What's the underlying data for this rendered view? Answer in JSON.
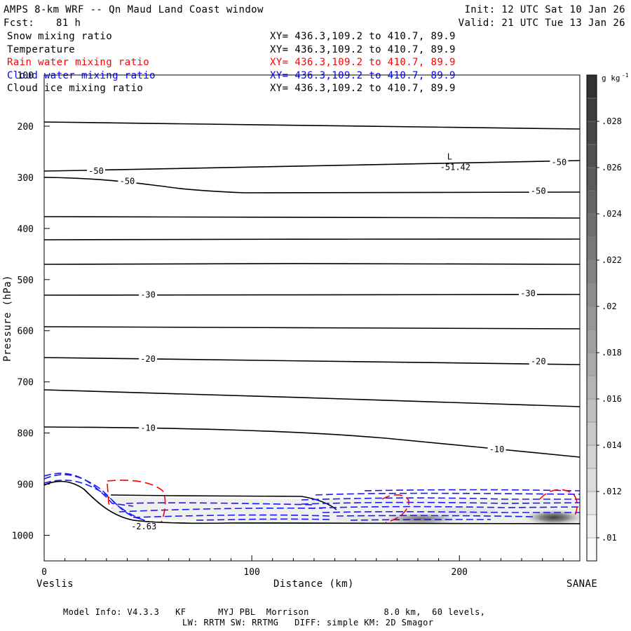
{
  "header": {
    "title": "AMPS 8-km WRF -- Qn Maud Land Coast window",
    "fcst_label": "Fcst:",
    "fcst_hours": "81 h",
    "init": "Init: 12 UTC Sat 10 Jan 26",
    "valid": "Valid: 21 UTC Tue 13 Jan 26"
  },
  "fields": [
    {
      "name": "Snow mixing ratio",
      "xy": "XY= 436.3,109.2 to 410.7, 89.9",
      "color": "#000000"
    },
    {
      "name": "Temperature",
      "xy": "XY= 436.3,109.2 to 410.7, 89.9",
      "color": "#000000"
    },
    {
      "name": "Rain water mixing ratio",
      "xy": "XY= 436.3,109.2 to 410.7, 89.9",
      "color": "#ff0000"
    },
    {
      "name": "Cloud water mixing ratio",
      "xy": "XY= 436.3,109.2 to 410.7, 89.9",
      "color": "#0000ff"
    },
    {
      "name": "Cloud ice mixing ratio",
      "xy": "XY= 436.3,109.2 to 410.7, 89.9",
      "color": "#000000"
    }
  ],
  "footer": {
    "line1": "Model Info: V4.3.3   KF      MYJ PBL  Morrison              8.0 km,  60 levels,",
    "line2": "LW: RRTM SW: RRTMG   DIFF: simple KM: 2D Smagor"
  },
  "chart_data": {
    "type": "cross-section contour",
    "xlabel": "Distance (km)",
    "ylabel": "Pressure (hPa)",
    "xlim": [
      0,
      258
    ],
    "ylim": [
      1050,
      100
    ],
    "x_ticks": [
      0,
      100,
      200
    ],
    "y_ticks": [
      100,
      200,
      300,
      400,
      500,
      600,
      700,
      800,
      900,
      1000
    ],
    "left_endpoint": "Veslis",
    "right_endpoint": "SANAE",
    "colorbar": {
      "unit": "g kg",
      "unit_exp": "-1",
      "ticks": [
        ".01",
        ".012",
        ".014",
        ".016",
        ".018",
        ".02",
        ".022",
        ".024",
        ".026",
        ".028"
      ],
      "levels": [
        0.009,
        0.01,
        0.011,
        0.012,
        0.013,
        0.014,
        0.015,
        0.016,
        0.017,
        0.018,
        0.019,
        0.02,
        0.021,
        0.022,
        0.023,
        0.024,
        0.025,
        0.026,
        0.027,
        0.028,
        0.029,
        0.03
      ]
    },
    "isotherm_labels": [
      {
        "text": "-50",
        "x": 25,
        "p": 288
      },
      {
        "text": "-50",
        "x": 40,
        "p": 308
      },
      {
        "text": "-50",
        "x": 248,
        "p": 271
      },
      {
        "text": "-50",
        "x": 238,
        "p": 327
      },
      {
        "text": "-30",
        "x": 50,
        "p": 530
      },
      {
        "text": "-30",
        "x": 233,
        "p": 527
      },
      {
        "text": "-20",
        "x": 50,
        "p": 655
      },
      {
        "text": "-20",
        "x": 238,
        "p": 660
      },
      {
        "text": "-10",
        "x": 50,
        "p": 790
      },
      {
        "text": "-10",
        "x": 218,
        "p": 832
      }
    ],
    "low_marker": {
      "label": "L",
      "value": "-51.42",
      "x": 198,
      "p": 280
    },
    "min_label": {
      "value": "-2.63",
      "x": 48,
      "p": 983
    }
  }
}
